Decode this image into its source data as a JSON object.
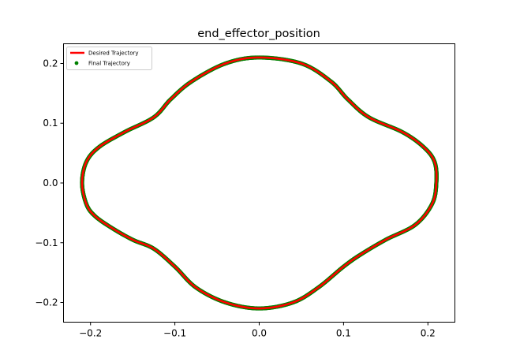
{
  "chart_data": {
    "type": "line",
    "title": "end_effector_position",
    "xlabel": "",
    "ylabel": "",
    "xlim": [
      -0.232,
      0.232
    ],
    "ylim": [
      -0.233,
      0.233
    ],
    "x_ticks": [
      -0.2,
      -0.1,
      0.0,
      0.1,
      0.2
    ],
    "x_tick_labels": [
      "−0.2",
      "−0.1",
      "0.0",
      "0.1",
      "0.2"
    ],
    "y_ticks": [
      0.2,
      0.1,
      0.0,
      -0.1,
      -0.2
    ],
    "y_tick_labels": [
      "0.2",
      "0.1",
      "0.0",
      "−0.1",
      "−0.2"
    ],
    "grid": false,
    "legend_position": "top-left",
    "series": [
      {
        "name": "Desired Trajectory",
        "kind": "line",
        "color": "#ff0000",
        "x": [
          0.0,
          0.05,
          0.085,
          0.105,
          0.13,
          0.17,
          0.195,
          0.208,
          0.21,
          0.205,
          0.185,
          0.15,
          0.12,
          0.1,
          0.07,
          0.04,
          0.0,
          -0.04,
          -0.075,
          -0.1,
          -0.125,
          -0.15,
          -0.175,
          -0.195,
          -0.205,
          -0.21,
          -0.205,
          -0.19,
          -0.16,
          -0.125,
          -0.105,
          -0.08,
          -0.04,
          0.0
        ],
        "y": [
          0.21,
          0.2,
          0.17,
          0.14,
          0.11,
          0.085,
          0.06,
          0.035,
          0.0,
          -0.035,
          -0.07,
          -0.095,
          -0.12,
          -0.14,
          -0.175,
          -0.2,
          -0.21,
          -0.2,
          -0.175,
          -0.14,
          -0.11,
          -0.095,
          -0.075,
          -0.055,
          -0.035,
          0.0,
          0.035,
          0.06,
          0.085,
          0.11,
          0.14,
          0.17,
          0.2,
          0.21
        ]
      },
      {
        "name": "Final Trajectory",
        "kind": "scatter",
        "color": "#008000",
        "x": [
          0.0,
          0.05,
          0.085,
          0.105,
          0.13,
          0.17,
          0.195,
          0.208,
          0.21,
          0.205,
          0.185,
          0.15,
          0.12,
          0.1,
          0.07,
          0.04,
          0.0,
          -0.04,
          -0.075,
          -0.1,
          -0.125,
          -0.15,
          -0.175,
          -0.195,
          -0.205,
          -0.21,
          -0.205,
          -0.19,
          -0.16,
          -0.125,
          -0.105,
          -0.08,
          -0.04,
          0.0
        ],
        "y": [
          0.21,
          0.2,
          0.17,
          0.14,
          0.11,
          0.085,
          0.06,
          0.035,
          0.0,
          -0.035,
          -0.07,
          -0.095,
          -0.12,
          -0.14,
          -0.175,
          -0.2,
          -0.21,
          -0.2,
          -0.175,
          -0.14,
          -0.11,
          -0.095,
          -0.075,
          -0.055,
          -0.035,
          0.0,
          0.035,
          0.06,
          0.085,
          0.11,
          0.14,
          0.17,
          0.2,
          0.21
        ]
      }
    ]
  }
}
